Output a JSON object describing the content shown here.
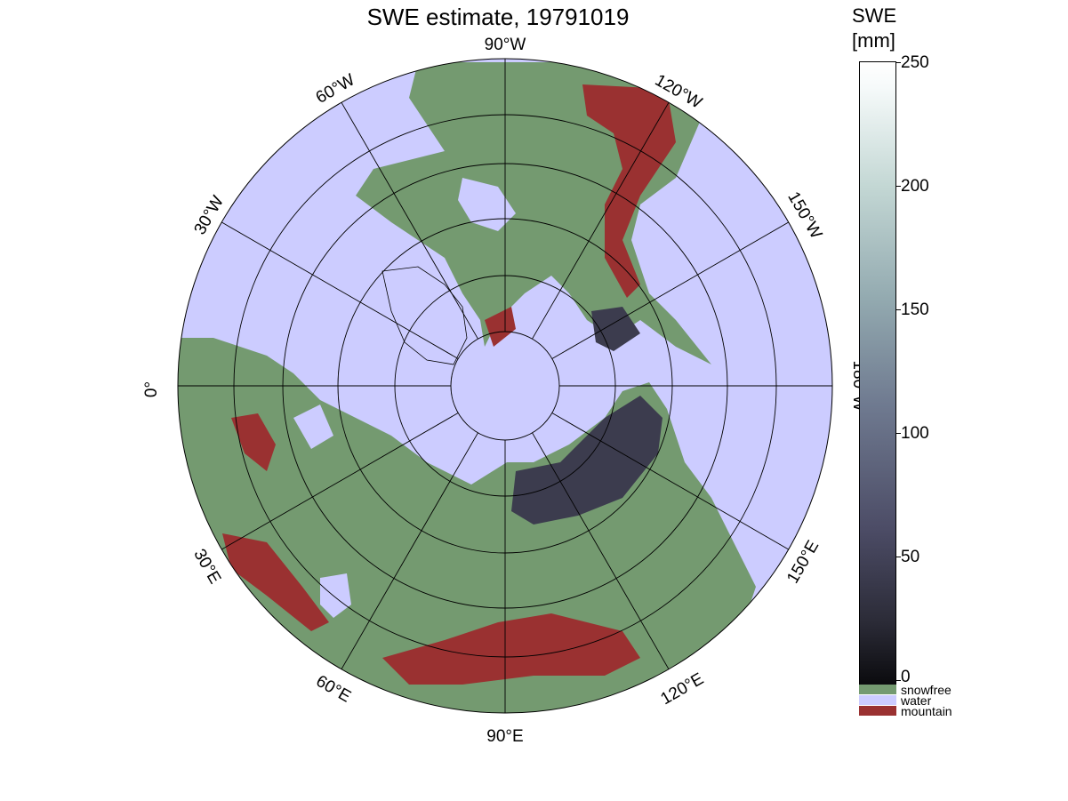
{
  "title": "SWE estimate, 19791019",
  "colorbar": {
    "title_line1": "SWE",
    "title_line2": "[mm]",
    "ticks": [
      "250",
      "200",
      "150",
      "100",
      "50",
      "0"
    ],
    "range": [
      0,
      250
    ]
  },
  "legend": [
    {
      "label": "snowfree",
      "color": "#749a70"
    },
    {
      "label": "water",
      "color": "#ccccff"
    },
    {
      "label": "mountain",
      "color": "#9a3131"
    }
  ],
  "map": {
    "projection": "north polar stereographic",
    "ocean_color": "#ccccff",
    "land_color": "#749a70",
    "mountain_color": "#9a3131",
    "snow_color": "#3c3c4e",
    "longitude_labels": [
      "90°W",
      "120°W",
      "150°W",
      "180°W",
      "150°E",
      "120°E",
      "90°E",
      "60°E",
      "30°E",
      "0°",
      "30°W",
      "60°W"
    ]
  }
}
